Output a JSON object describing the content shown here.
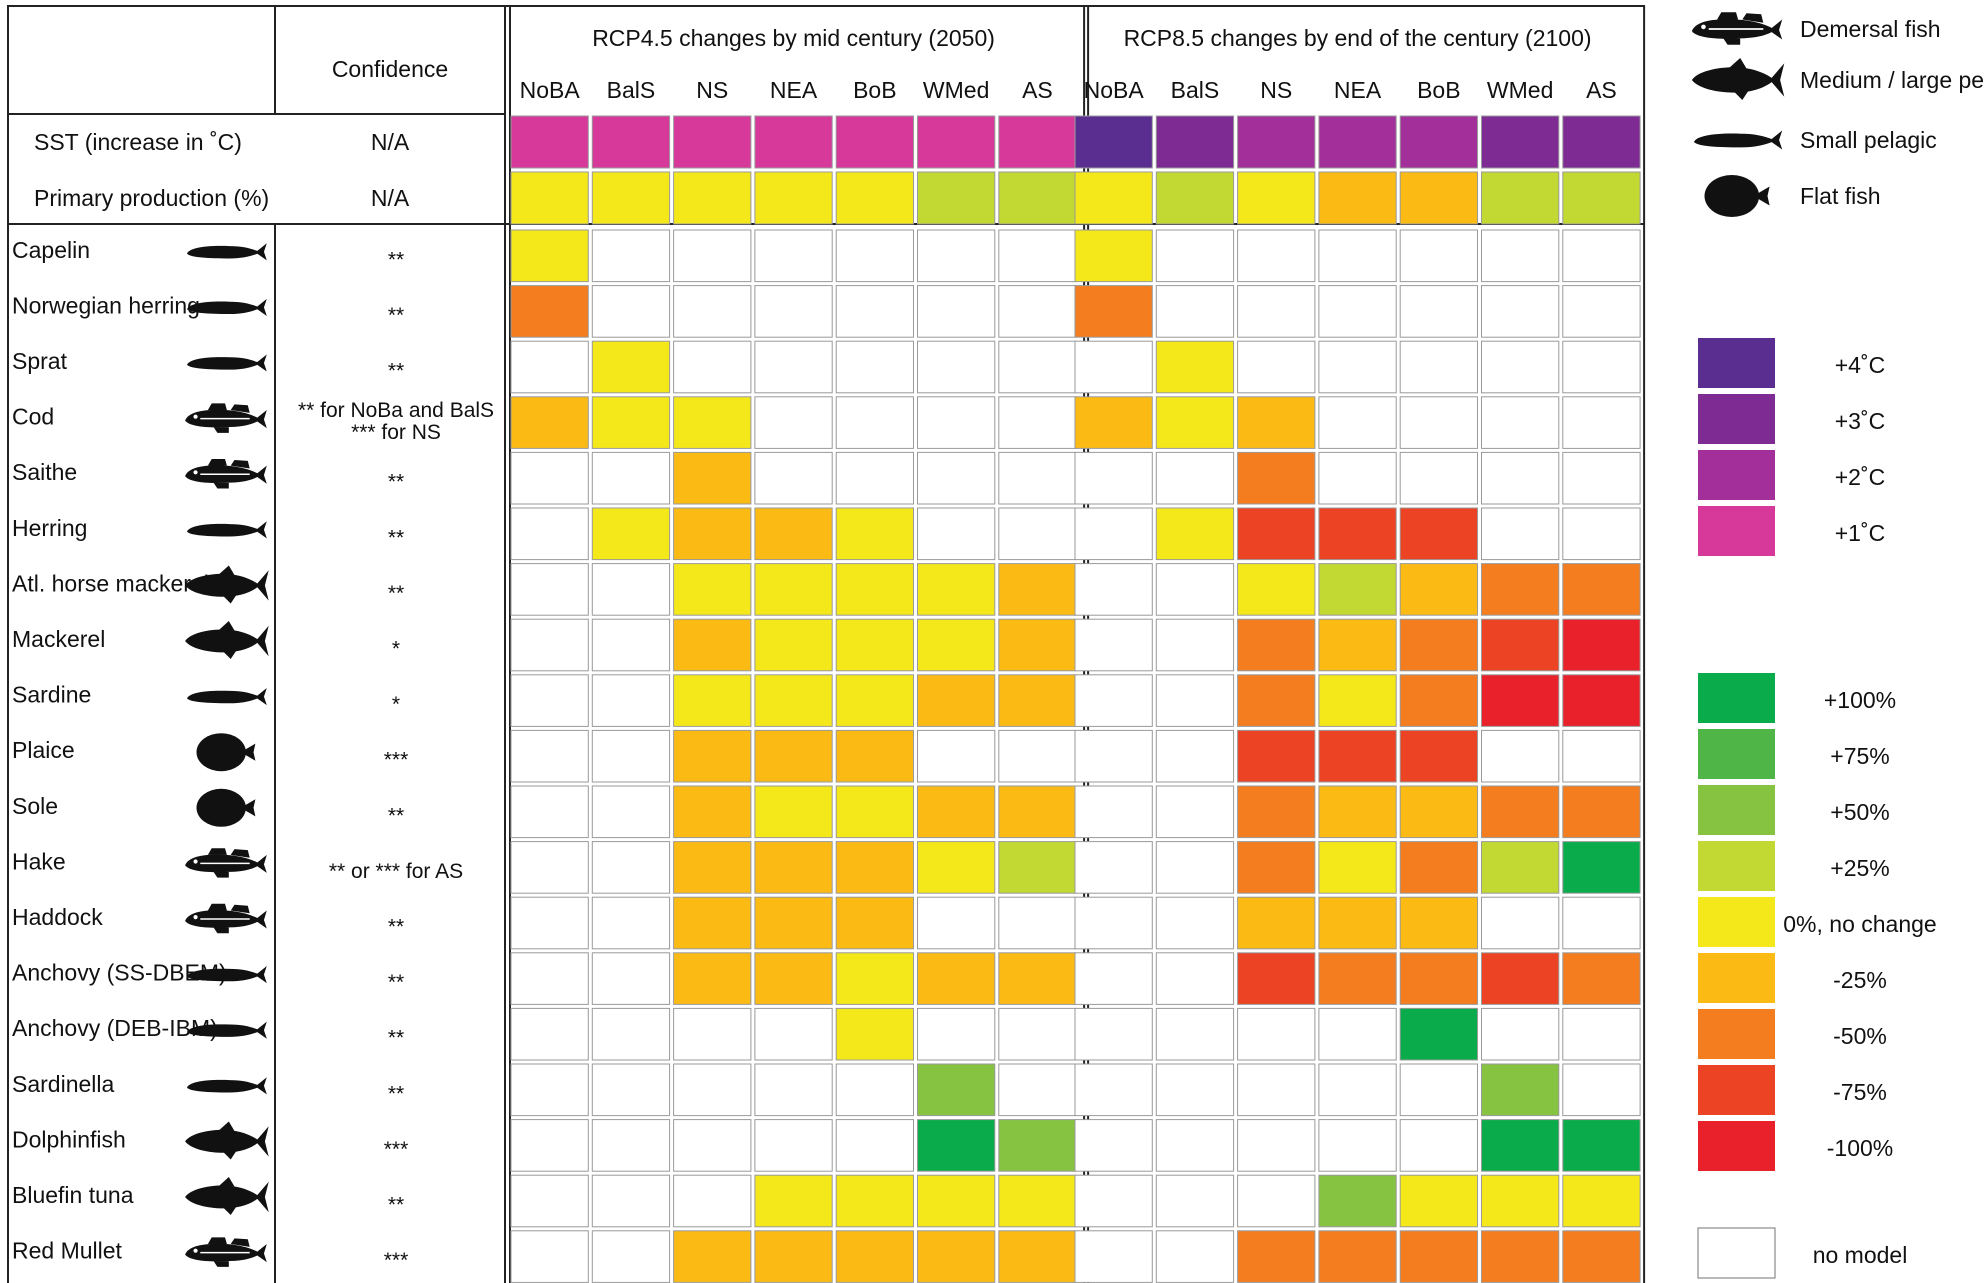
{
  "chart_data": {
    "type": "heatmap",
    "left_header": {
      "confidence": "Confidence"
    },
    "groups": [
      {
        "title": "RCP4.5 changes by mid century (2050)"
      },
      {
        "title": "RCP8.5 changes by end of the century (2100)"
      }
    ],
    "regions": [
      "NoBA",
      "BalS",
      "NS",
      "NEA",
      "BoB",
      "WMed",
      "AS"
    ],
    "driver_rows": [
      {
        "label": "SST (increase in ˚C)",
        "confidence": "N/A",
        "rcp45": [
          "+1",
          "+1",
          "+1",
          "+1",
          "+1",
          "+1",
          "+1"
        ],
        "rcp85": [
          "+4",
          "+3",
          "+2",
          "+2",
          "+2",
          "+3",
          "+3"
        ]
      },
      {
        "label": "Primary production (%)",
        "confidence": "N/A",
        "rcp45": [
          "0",
          "0",
          "0",
          "0",
          "0",
          "+25",
          "+25"
        ],
        "rcp85": [
          "0",
          "+25",
          "0",
          "-25",
          "-25",
          "+25",
          "+25"
        ]
      }
    ],
    "species_rows": [
      {
        "name": "Capelin",
        "icon": "small-pelagic",
        "confidence": [
          "**"
        ],
        "rcp45": [
          "0",
          "nm",
          "nm",
          "nm",
          "nm",
          "nm",
          "nm"
        ],
        "rcp85": [
          "0",
          "nm",
          "nm",
          "nm",
          "nm",
          "nm",
          "nm"
        ]
      },
      {
        "name": "Norwegian herring",
        "icon": "small-pelagic",
        "confidence": [
          "**"
        ],
        "rcp45": [
          "-50",
          "nm",
          "nm",
          "nm",
          "nm",
          "nm",
          "nm"
        ],
        "rcp85": [
          "-50",
          "nm",
          "nm",
          "nm",
          "nm",
          "nm",
          "nm"
        ]
      },
      {
        "name": "Sprat",
        "icon": "small-pelagic",
        "confidence": [
          "**"
        ],
        "rcp45": [
          "nm",
          "0",
          "nm",
          "nm",
          "nm",
          "nm",
          "nm"
        ],
        "rcp85": [
          "nm",
          "0",
          "nm",
          "nm",
          "nm",
          "nm",
          "nm"
        ]
      },
      {
        "name": "Cod",
        "icon": "demersal",
        "confidence": [
          "** for NoBa and BalS",
          "*** for NS"
        ],
        "rcp45": [
          "-25",
          "0",
          "0",
          "nm",
          "nm",
          "nm",
          "nm"
        ],
        "rcp85": [
          "-25",
          "0",
          "-25",
          "nm",
          "nm",
          "nm",
          "nm"
        ]
      },
      {
        "name": "Saithe",
        "icon": "demersal",
        "confidence": [
          "**"
        ],
        "rcp45": [
          "nm",
          "nm",
          "-25",
          "nm",
          "nm",
          "nm",
          "nm"
        ],
        "rcp85": [
          "nm",
          "nm",
          "-50",
          "nm",
          "nm",
          "nm",
          "nm"
        ]
      },
      {
        "name": "Herring",
        "icon": "small-pelagic",
        "confidence": [
          "**"
        ],
        "rcp45": [
          "nm",
          "0",
          "-25",
          "-25",
          "0",
          "nm",
          "nm"
        ],
        "rcp85": [
          "nm",
          "0",
          "-75",
          "-75",
          "-75",
          "nm",
          "nm"
        ]
      },
      {
        "name": "Atl. horse mackerel",
        "icon": "large-pelagic",
        "confidence": [
          "**"
        ],
        "rcp45": [
          "nm",
          "nm",
          "0",
          "0",
          "0",
          "0",
          "-25"
        ],
        "rcp85": [
          "nm",
          "nm",
          "0",
          "+25",
          "-25",
          "-50",
          "-50"
        ]
      },
      {
        "name": "Mackerel",
        "icon": "large-pelagic",
        "confidence": [
          "*"
        ],
        "rcp45": [
          "nm",
          "nm",
          "-25",
          "0",
          "0",
          "0",
          "-25"
        ],
        "rcp85": [
          "nm",
          "nm",
          "-50",
          "-25",
          "-50",
          "-75",
          "-100"
        ]
      },
      {
        "name": "Sardine",
        "icon": "small-pelagic",
        "confidence": [
          "*"
        ],
        "rcp45": [
          "nm",
          "nm",
          "0",
          "0",
          "0",
          "-25",
          "-25"
        ],
        "rcp85": [
          "nm",
          "nm",
          "-50",
          "0",
          "-50",
          "-100",
          "-100"
        ]
      },
      {
        "name": "Plaice",
        "icon": "flat",
        "confidence": [
          "***"
        ],
        "rcp45": [
          "nm",
          "nm",
          "-25",
          "-25",
          "-25",
          "nm",
          "nm"
        ],
        "rcp85": [
          "nm",
          "nm",
          "-75",
          "-75",
          "-75",
          "nm",
          "nm"
        ]
      },
      {
        "name": "Sole",
        "icon": "flat",
        "confidence": [
          "**"
        ],
        "rcp45": [
          "nm",
          "nm",
          "-25",
          "0",
          "0",
          "-25",
          "-25"
        ],
        "rcp85": [
          "nm",
          "nm",
          "-50",
          "-25",
          "-25",
          "-50",
          "-50"
        ]
      },
      {
        "name": "Hake",
        "icon": "demersal",
        "confidence": [
          "** or *** for AS"
        ],
        "rcp45": [
          "nm",
          "nm",
          "-25",
          "-25",
          "-25",
          "0",
          "+25"
        ],
        "rcp85": [
          "nm",
          "nm",
          "-50",
          "0",
          "-50",
          "+25",
          "+100"
        ]
      },
      {
        "name": "Haddock",
        "icon": "demersal",
        "confidence": [
          "**"
        ],
        "rcp45": [
          "nm",
          "nm",
          "-25",
          "-25",
          "-25",
          "nm",
          "nm"
        ],
        "rcp85": [
          "nm",
          "nm",
          "-25",
          "-25",
          "-25",
          "nm",
          "nm"
        ]
      },
      {
        "name": "Anchovy (SS-DBEM)",
        "icon": "small-pelagic",
        "confidence": [
          "**"
        ],
        "rcp45": [
          "nm",
          "nm",
          "-25",
          "-25",
          "0",
          "-25",
          "-25"
        ],
        "rcp85": [
          "nm",
          "nm",
          "-75",
          "-50",
          "-50",
          "-75",
          "-50"
        ]
      },
      {
        "name": "Anchovy (DEB-IBM)",
        "icon": "small-pelagic",
        "confidence": [
          "**"
        ],
        "rcp45": [
          "nm",
          "nm",
          "nm",
          "nm",
          "0",
          "nm",
          "nm"
        ],
        "rcp85": [
          "nm",
          "nm",
          "nm",
          "nm",
          "+100",
          "nm",
          "nm"
        ]
      },
      {
        "name": "Sardinella",
        "icon": "small-pelagic",
        "confidence": [
          "**"
        ],
        "rcp45": [
          "nm",
          "nm",
          "nm",
          "nm",
          "nm",
          "+50",
          "nm"
        ],
        "rcp85": [
          "nm",
          "nm",
          "nm",
          "nm",
          "nm",
          "+50",
          "nm"
        ]
      },
      {
        "name": "Dolphinfish",
        "icon": "large-pelagic",
        "confidence": [
          "***"
        ],
        "rcp45": [
          "nm",
          "nm",
          "nm",
          "nm",
          "nm",
          "+100",
          "+50"
        ],
        "rcp85": [
          "nm",
          "nm",
          "nm",
          "nm",
          "nm",
          "+100",
          "+100"
        ]
      },
      {
        "name": "Bluefin tuna",
        "icon": "large-pelagic",
        "confidence": [
          "**"
        ],
        "rcp45": [
          "nm",
          "nm",
          "nm",
          "0",
          "0",
          "0",
          "0"
        ],
        "rcp85": [
          "nm",
          "nm",
          "nm",
          "+50",
          "0",
          "0",
          "0"
        ]
      },
      {
        "name": "Red Mullet",
        "icon": "demersal",
        "confidence": [
          "***"
        ],
        "rcp45": [
          "nm",
          "nm",
          "-25",
          "-25",
          "-25",
          "-25",
          "-25"
        ],
        "rcp85": [
          "nm",
          "nm",
          "-50",
          "-50",
          "-50",
          "-50",
          "-50"
        ]
      }
    ],
    "legend": {
      "icons": [
        {
          "icon": "demersal",
          "label": "Demersal fish"
        },
        {
          "icon": "large-pelagic",
          "label": "Medium / large pelagic"
        },
        {
          "icon": "small-pelagic",
          "label": "Small pelagic"
        },
        {
          "icon": "flat",
          "label": "Flat fish"
        }
      ],
      "sst_scale": [
        {
          "key": "+4",
          "label": "+4˚C",
          "color": "#5a2d91"
        },
        {
          "key": "+3",
          "label": "+3˚C",
          "color": "#7e2c94"
        },
        {
          "key": "+2",
          "label": "+2˚C",
          "color": "#a3309a"
        },
        {
          "key": "+1",
          "label": "+1˚C",
          "color": "#d6399a"
        }
      ],
      "change_scale": [
        {
          "key": "+100",
          "label": "+100%",
          "color": "#0aab4b"
        },
        {
          "key": "+75",
          "label": "+75%",
          "color": "#4fb547"
        },
        {
          "key": "+50",
          "label": "+50%",
          "color": "#86c341"
        },
        {
          "key": "+25",
          "label": "+25%",
          "color": "#c2d833"
        },
        {
          "key": "0",
          "label": "0%, no change",
          "color": "#f4e81a"
        },
        {
          "key": "-25",
          "label": "-25%",
          "color": "#fbbb14"
        },
        {
          "key": "-50",
          "label": "-50%",
          "color": "#f47d20"
        },
        {
          "key": "-75",
          "label": "-75%",
          "color": "#ec4324"
        },
        {
          "key": "-100",
          "label": "-100%",
          "color": "#e8212a"
        }
      ],
      "no_model": {
        "key": "nm",
        "label": "no model",
        "color": "#ffffff"
      }
    }
  }
}
